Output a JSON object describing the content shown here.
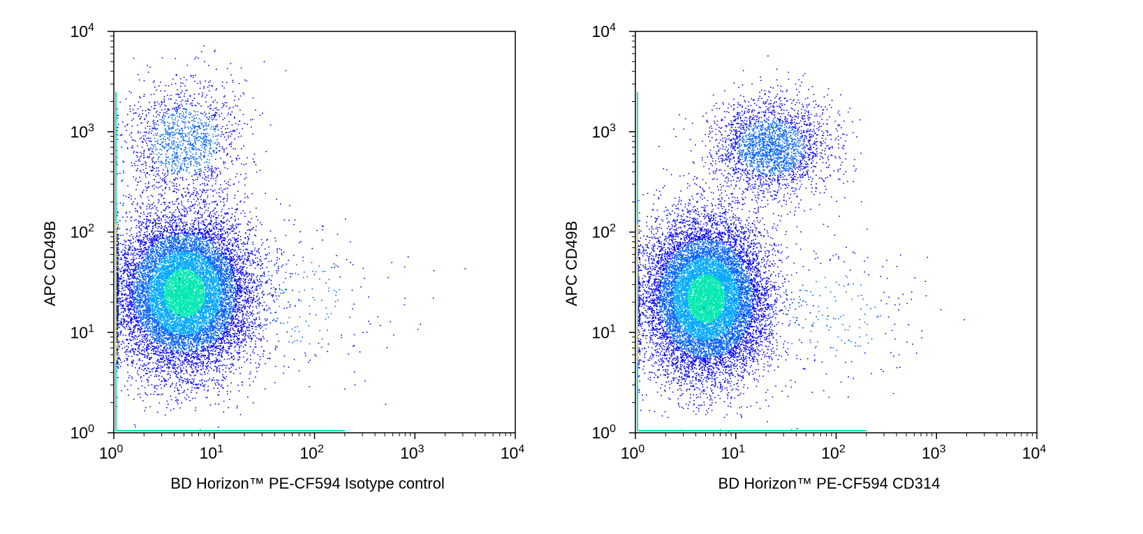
{
  "chart_data": [
    {
      "type": "scatter",
      "subtype": "flow-cytometry-density-dot-plot",
      "title": "",
      "xlabel": "BD Horizon™ PE-CF594 Isotype control",
      "ylabel": "APC CD49B",
      "xscale": "log",
      "yscale": "log",
      "xlim": [
        1,
        10000
      ],
      "ylim": [
        1,
        10000
      ],
      "x_ticks": [
        "10^0",
        "10^1",
        "10^2",
        "10^3",
        "10^4"
      ],
      "y_ticks": [
        "10^0",
        "10^1",
        "10^2",
        "10^3",
        "10^4"
      ],
      "grid": false,
      "populations": [
        {
          "center_x": 5,
          "center_y": 25,
          "spread_x_decades": 0.33,
          "spread_y_decades": 0.38,
          "relative_density": "high"
        },
        {
          "center_x": 5,
          "center_y": 800,
          "spread_x_decades": 0.3,
          "spread_y_decades": 0.3,
          "relative_density": "low"
        },
        {
          "center_x": 60,
          "center_y": 20,
          "spread_x_decades": 0.5,
          "spread_y_decades": 0.4,
          "relative_density": "sparse"
        }
      ]
    },
    {
      "type": "scatter",
      "subtype": "flow-cytometry-density-dot-plot",
      "title": "",
      "xlabel": "BD Horizon™ PE-CF594 CD314",
      "ylabel": "APC CD49B",
      "xscale": "log",
      "yscale": "log",
      "xlim": [
        1,
        10000
      ],
      "ylim": [
        1,
        10000
      ],
      "x_ticks": [
        "10^0",
        "10^1",
        "10^2",
        "10^3",
        "10^4"
      ],
      "y_ticks": [
        "10^0",
        "10^1",
        "10^2",
        "10^3",
        "10^4"
      ],
      "grid": false,
      "populations": [
        {
          "center_x": 5,
          "center_y": 22,
          "spread_x_decades": 0.3,
          "spread_y_decades": 0.38,
          "relative_density": "high"
        },
        {
          "center_x": 22,
          "center_y": 700,
          "spread_x_decades": 0.3,
          "spread_y_decades": 0.25,
          "relative_density": "moderate"
        },
        {
          "center_x": 80,
          "center_y": 15,
          "spread_x_decades": 0.5,
          "spread_y_decades": 0.4,
          "relative_density": "sparse"
        }
      ]
    }
  ],
  "colors": {
    "low_density": "#0000ff",
    "mid_density": "#00a8ff",
    "high_density": "#00e8b0",
    "peak_density": "#ffe000",
    "axis": "#000000"
  }
}
